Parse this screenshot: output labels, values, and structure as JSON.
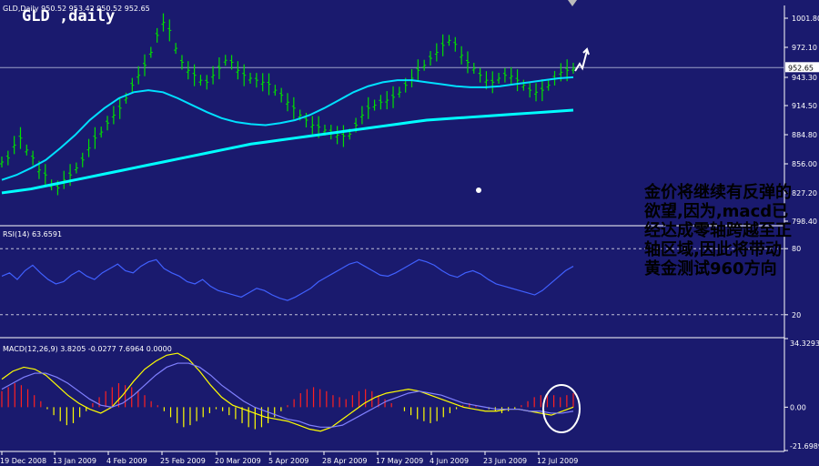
{
  "chart_data": [
    {
      "type": "line",
      "panel": "price",
      "title": "GLD ,daily",
      "header": "GLD,Daily 950.52 953.42 950.52 952.65",
      "symbol": "GLD",
      "timeframe": "daily",
      "ohlc_readout": [
        950.52,
        953.42,
        950.52,
        952.65
      ],
      "last_price_label": "952.65",
      "y_ticks": [
        "1001.80",
        "972.10",
        "943.30",
        "914.50",
        "884.80",
        "856.00",
        "827.20",
        "798.40"
      ],
      "ylim": [
        795,
        1015
      ],
      "grid": false,
      "series": [
        {
          "name": "",
          "color": "#00e000",
          "role": "price-bars",
          "values": [
            858,
            862,
            875,
            882,
            870,
            862,
            850,
            845,
            835,
            832,
            840,
            845,
            852,
            860,
            872,
            882,
            888,
            897,
            905,
            912,
            922,
            935,
            945,
            955,
            968,
            985,
            998,
            990,
            972,
            958,
            950,
            945,
            940,
            938,
            945,
            952,
            960,
            958,
            950,
            945,
            942,
            940,
            938,
            936,
            930,
            925,
            918,
            912,
            905,
            900,
            895,
            893,
            890,
            888,
            885,
            884,
            886,
            895,
            905,
            912,
            915,
            918,
            920,
            923,
            928,
            935,
            942,
            950,
            955,
            962,
            968,
            975,
            980,
            976,
            965,
            958,
            952,
            945,
            940,
            938,
            942,
            945,
            944,
            940,
            935,
            930,
            928,
            930,
            935,
            942,
            948,
            950,
            952
          ]
        },
        {
          "name": "",
          "color": "#00ffff",
          "role": "long-moving-average",
          "values": [
            827,
            829,
            831,
            834,
            837,
            840,
            843,
            846,
            849,
            852,
            855,
            858,
            861,
            864,
            867,
            870,
            873,
            876,
            878,
            880,
            882,
            884,
            886,
            888,
            890,
            892,
            894,
            896,
            898,
            900,
            901,
            902,
            903,
            904,
            905,
            906,
            907,
            908,
            909,
            910
          ]
        },
        {
          "name": "",
          "color": "#00e0ff",
          "role": "medium-moving-average",
          "values": [
            840,
            845,
            852,
            860,
            872,
            885,
            900,
            912,
            922,
            928,
            930,
            928,
            922,
            915,
            908,
            902,
            898,
            896,
            895,
            897,
            900,
            905,
            912,
            920,
            928,
            934,
            938,
            940,
            940,
            938,
            936,
            934,
            933,
            933,
            934,
            936,
            938,
            940,
            942,
            943
          ]
        }
      ]
    },
    {
      "type": "line",
      "panel": "rsi",
      "header": "RSI(14) 63.6591",
      "y_ticks": [
        "80",
        "20"
      ],
      "levels": [
        80,
        20
      ],
      "ylim": [
        0,
        100
      ],
      "series": [
        {
          "name": "",
          "color": "#4060ff",
          "values": [
            55,
            58,
            52,
            60,
            65,
            58,
            52,
            48,
            50,
            56,
            60,
            55,
            52,
            58,
            62,
            66,
            60,
            58,
            64,
            68,
            70,
            62,
            58,
            55,
            50,
            48,
            52,
            46,
            42,
            40,
            38,
            36,
            40,
            44,
            42,
            38,
            35,
            33,
            36,
            40,
            44,
            50,
            54,
            58,
            62,
            66,
            68,
            64,
            60,
            56,
            55,
            58,
            62,
            66,
            70,
            68,
            65,
            60,
            56,
            54,
            58,
            60,
            57,
            52,
            48,
            46,
            44,
            42,
            40,
            38,
            42,
            48,
            54,
            60,
            64
          ]
        }
      ]
    },
    {
      "type": "bar",
      "panel": "macd",
      "header": "MACD(12,26,9) 3.8205 -0.0277 7.6964 0.0000",
      "params": "12,26,9",
      "readout": [
        3.8205,
        -0.0277,
        7.6964,
        0.0
      ],
      "y_ticks": [
        "34.3293",
        "0.00",
        "-21.6989"
      ],
      "ylim": [
        -21.6989,
        34.3293
      ],
      "x_tick_labels": [
        "19 Dec 2008",
        "13 Jan 2009",
        "4 Feb 2009",
        "25 Feb 2009",
        "20 Mar 2009",
        "5 Apr 2009",
        "28 Apr 2009",
        "17 May 2009",
        "4 Jun 2009",
        "23 Jun 2009",
        "12 Jul 2009"
      ],
      "series": [
        {
          "name": "",
          "color": "#ff2020",
          "role": "histogram",
          "values": [
            8,
            10,
            12,
            11,
            9,
            6,
            3,
            -1,
            -4,
            -7,
            -9,
            -8,
            -5,
            -2,
            2,
            5,
            8,
            10,
            12,
            11,
            10,
            8,
            6,
            3,
            1,
            -2,
            -5,
            -8,
            -10,
            -9,
            -7,
            -5,
            -3,
            -1,
            -2,
            -4,
            -6,
            -8,
            -10,
            -11,
            -10,
            -8,
            -5,
            -2,
            1,
            4,
            7,
            9,
            10,
            9,
            8,
            6,
            5,
            4,
            6,
            8,
            9,
            8,
            6,
            4,
            2,
            0,
            -2,
            -4,
            -6,
            -7,
            -8,
            -7,
            -5,
            -3,
            -1,
            1,
            2,
            1,
            0,
            -1,
            -2,
            -3,
            -2,
            -1,
            1,
            3,
            5,
            6,
            7,
            6,
            5,
            6,
            7
          ]
        },
        {
          "name": "",
          "color": "#ffff00",
          "role": "macd-line",
          "values": [
            14,
            18,
            20,
            19,
            16,
            11,
            6,
            2,
            -1,
            -3,
            0,
            6,
            13,
            19,
            23,
            26,
            27,
            24,
            18,
            11,
            5,
            1,
            -1,
            -3,
            -5,
            -6,
            -7,
            -9,
            -11,
            -12,
            -10,
            -6,
            -2,
            2,
            5,
            7,
            8,
            9,
            8,
            6,
            4,
            2,
            0,
            -1,
            -2,
            -2,
            -1,
            -1,
            -2,
            -3,
            -4,
            -2,
            0
          ]
        },
        {
          "name": "",
          "color": "#8080ff",
          "role": "signal-line",
          "values": [
            9,
            12,
            15,
            17,
            17,
            15,
            12,
            8,
            4,
            1,
            0,
            2,
            6,
            11,
            16,
            20,
            22,
            22,
            20,
            16,
            11,
            7,
            3,
            0,
            -2,
            -4,
            -6,
            -7,
            -9,
            -10,
            -10,
            -9,
            -6,
            -3,
            0,
            3,
            5,
            7,
            8,
            7,
            6,
            4,
            2,
            1,
            0,
            -1,
            -1,
            -1,
            -2,
            -2,
            -3,
            -3,
            -2
          ]
        }
      ]
    }
  ],
  "annotation_text": "金价将继续有反弹的\n欲望,因为,macd已\n经达成零轴跨越至正\n轴区域,因此将带动\n黄金测试960方向",
  "colors": {
    "background": "#1a1a6e",
    "axis": "#ffffff",
    "price_bars": "#00e000",
    "ma_long": "#00ffff",
    "rsi_line": "#4060ff",
    "macd_positive": "#ff2020",
    "macd_negative": "#ffff00",
    "macd_line": "#ffff00",
    "signal_line": "#8080ff",
    "circle": "#ffffff"
  }
}
